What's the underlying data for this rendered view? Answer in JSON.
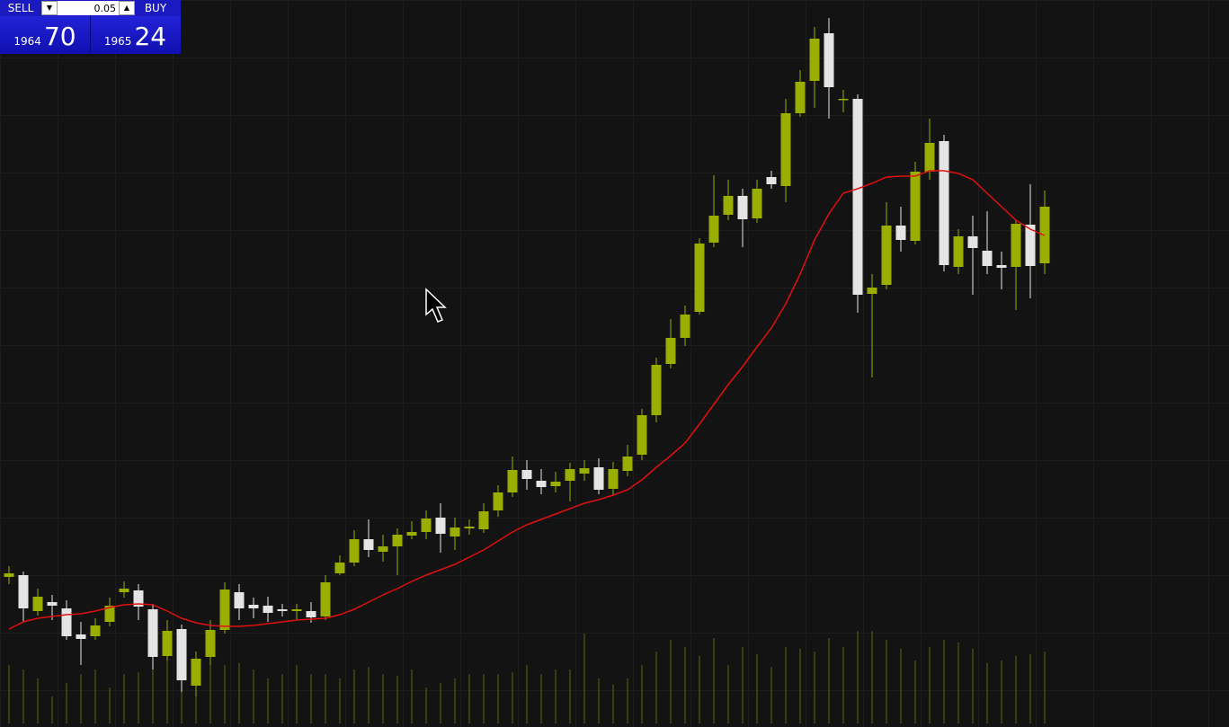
{
  "trade_panel": {
    "sell_label": "SELL",
    "buy_label": "BUY",
    "lot": "0.05",
    "sell_big": "1964",
    "sell_small": "70",
    "buy_big": "1965",
    "buy_small": "24"
  },
  "chart_data": {
    "type": "candlestick",
    "open": [
      158,
      160,
      120,
      130,
      123,
      94,
      92,
      108,
      141,
      143,
      122,
      70,
      100,
      37,
      69,
      99,
      141,
      127,
      126,
      122,
      120,
      120,
      114,
      162,
      174,
      200,
      186,
      192,
      204,
      208,
      224,
      203,
      212,
      211,
      232,
      252,
      277,
      265,
      259,
      265,
      273,
      280,
      256,
      276,
      294,
      338,
      395,
      424,
      453,
      530,
      561,
      582,
      557,
      603,
      593,
      674,
      710,
      763,
      689,
      690,
      473,
      483,
      549,
      532,
      609,
      643,
      503,
      537,
      521,
      505,
      503,
      550,
      507
    ],
    "high": [
      170,
      164,
      145,
      138,
      132,
      108,
      112,
      135,
      153,
      150,
      128,
      110,
      105,
      75,
      110,
      152,
      150,
      135,
      136,
      128,
      128,
      130,
      160,
      182,
      210,
      222,
      205,
      212,
      220,
      232,
      240,
      224,
      222,
      240,
      260,
      292,
      288,
      278,
      275,
      285,
      288,
      290,
      286,
      305,
      345,
      402,
      445,
      460,
      535,
      605,
      600,
      590,
      600,
      610,
      690,
      722,
      770,
      780,
      700,
      695,
      495,
      575,
      570,
      620,
      668,
      650,
      545,
      560,
      565,
      520,
      555,
      595,
      588
    ],
    "low": [
      150,
      107,
      115,
      110,
      88,
      60,
      88,
      103,
      135,
      110,
      55,
      65,
      30,
      25,
      60,
      95,
      110,
      112,
      108,
      114,
      110,
      107,
      110,
      160,
      170,
      180,
      175,
      160,
      200,
      200,
      185,
      188,
      205,
      207,
      225,
      247,
      255,
      250,
      252,
      242,
      265,
      250,
      248,
      270,
      288,
      330,
      390,
      415,
      450,
      525,
      555,
      525,
      552,
      590,
      575,
      670,
      680,
      668,
      675,
      452,
      380,
      478,
      520,
      528,
      600,
      498,
      495,
      472,
      495,
      478,
      455,
      468,
      495
    ],
    "close": [
      162,
      123,
      136,
      126,
      92,
      89,
      104,
      126,
      145,
      125,
      69,
      98,
      43,
      67,
      99,
      144,
      123,
      123,
      118,
      120,
      122,
      113,
      152,
      174,
      200,
      188,
      192,
      205,
      208,
      223,
      206,
      213,
      214,
      231,
      252,
      277,
      267,
      258,
      264,
      278,
      279,
      255,
      278,
      292,
      338,
      394,
      424,
      450,
      529,
      560,
      582,
      556,
      590,
      595,
      674,
      709,
      757,
      703,
      690,
      472,
      480,
      549,
      533,
      609,
      641,
      505,
      537,
      524,
      504,
      502,
      551,
      504,
      570
    ],
    "ylim": [
      0,
      800
    ],
    "up_color": "#9aae00",
    "down_color": "#e4e4e4",
    "moving_average": {
      "color": "#e01010",
      "values": [
        100,
        108,
        112,
        114,
        116,
        117,
        120,
        124,
        127,
        128,
        127,
        120,
        112,
        107,
        104,
        103,
        103,
        104,
        106,
        108,
        110,
        111,
        112,
        116,
        122,
        130,
        138,
        145,
        153,
        160,
        166,
        172,
        180,
        188,
        198,
        208,
        216,
        222,
        228,
        234,
        240,
        244,
        249,
        255,
        266,
        280,
        293,
        307,
        328,
        350,
        372,
        392,
        414,
        435,
        462,
        495,
        533,
        562,
        585,
        590,
        596,
        603,
        604,
        604,
        610,
        610,
        607,
        600,
        585,
        570,
        555,
        545,
        538
      ]
    },
    "volume": {
      "color": "#5c6412",
      "values": [
        65,
        60,
        50,
        30,
        45,
        55,
        60,
        40,
        55,
        57,
        60,
        70,
        65,
        60,
        65,
        65,
        67,
        60,
        50,
        55,
        65,
        55,
        55,
        50,
        60,
        63,
        55,
        53,
        60,
        40,
        45,
        50,
        55,
        55,
        55,
        57,
        65,
        55,
        60,
        60,
        100,
        50,
        43,
        50,
        65,
        80,
        93,
        85,
        75,
        95,
        65,
        85,
        77,
        63,
        85,
        83,
        80,
        95,
        85,
        103,
        103,
        93,
        83,
        70,
        85,
        93,
        90,
        83,
        67,
        70,
        75,
        77,
        80
      ]
    },
    "y2lim": [
      0,
      800
    ]
  }
}
